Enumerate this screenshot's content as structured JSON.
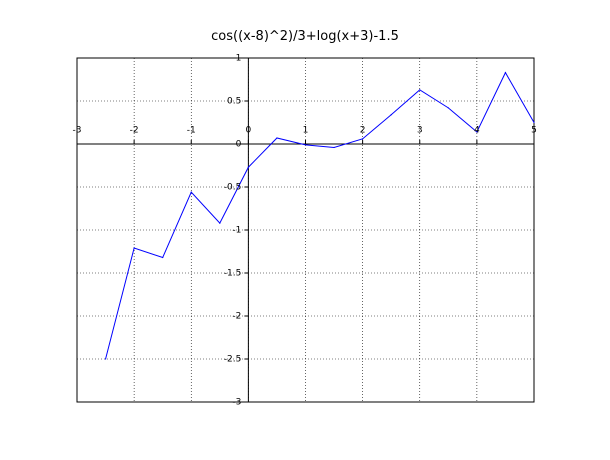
{
  "chart_data": {
    "type": "line",
    "title": "cos((x-8)^2)/3+log(x+3)-1.5",
    "xlabel": "",
    "ylabel": "",
    "xlim": [
      -3,
      5
    ],
    "ylim": [
      -3,
      1
    ],
    "x_ticks": [
      -3,
      -2,
      -1,
      0,
      1,
      2,
      3,
      4,
      5
    ],
    "x_tick_labels": [
      "-3",
      "-2",
      "-1",
      "0",
      "1",
      "2",
      "3",
      "4",
      "5"
    ],
    "y_ticks": [
      1,
      0.5,
      0,
      -0.5,
      -1,
      -1.5,
      -2,
      -2.5,
      -3
    ],
    "y_tick_labels": [
      "1",
      "0.5",
      "0",
      "-0.5",
      "-1",
      "-1.5",
      "-2",
      "-2.5",
      "-3"
    ],
    "grid": true,
    "series": [
      {
        "color": "#0000ff",
        "x": [
          -2.5,
          -2,
          -1.5,
          -1,
          -0.5,
          0,
          0.5,
          1,
          1.5,
          2,
          2.5,
          3,
          3.5,
          4,
          4.5,
          5
        ],
        "y": [
          -2.5,
          -1.21,
          -1.32,
          -0.56,
          -0.92,
          -0.27,
          0.07,
          -0.01,
          -0.04,
          0.06,
          0.34,
          0.63,
          0.42,
          0.14,
          0.83,
          0.25
        ]
      }
    ]
  }
}
